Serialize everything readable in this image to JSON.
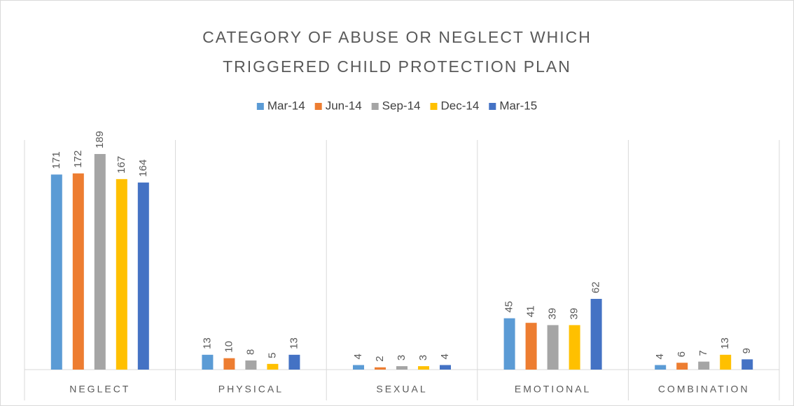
{
  "chart_data": {
    "type": "bar",
    "title": "CATEGORY OF ABUSE OR NEGLECT WHICH TRIGGERED CHILD PROTECTION PLAN",
    "categories": [
      "NEGLECT",
      "PHYSICAL",
      "SEXUAL",
      "EMOTIONAL",
      "COMBINATION"
    ],
    "series": [
      {
        "name": "Mar-14",
        "color": "#5b9bd5",
        "values": [
          171,
          13,
          4,
          45,
          4
        ]
      },
      {
        "name": "Jun-14",
        "color": "#ed7d31",
        "values": [
          172,
          10,
          2,
          41,
          6
        ]
      },
      {
        "name": "Sep-14",
        "color": "#a5a5a5",
        "values": [
          189,
          8,
          3,
          39,
          7
        ]
      },
      {
        "name": "Dec-14",
        "color": "#ffc000",
        "values": [
          167,
          5,
          3,
          39,
          13
        ]
      },
      {
        "name": "Mar-15",
        "color": "#4472c4",
        "values": [
          164,
          13,
          4,
          62,
          9
        ]
      }
    ],
    "legend": "top"
  }
}
